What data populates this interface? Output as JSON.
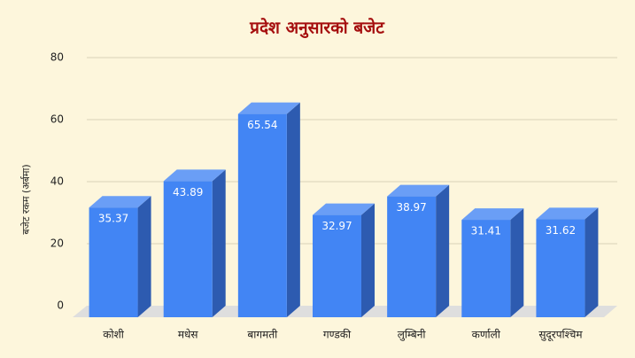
{
  "chart_data": {
    "type": "bar3d",
    "title": "प्रदेश अनुसारको बजेट",
    "y_label": "बजेट रकम (अर्बमा)",
    "categories": [
      "कोशी",
      "मधेस",
      "बागमती",
      "गण्डकी",
      "लुम्बिनी",
      "कर्णाली",
      "सुदूरपश्चिम"
    ],
    "values": [
      35.37,
      43.89,
      65.54,
      32.97,
      38.97,
      31.41,
      31.62
    ],
    "color": "#4285f4",
    "ylim": [
      0,
      80
    ],
    "yticks": [
      0,
      20,
      40,
      60,
      80
    ],
    "grid": true
  }
}
